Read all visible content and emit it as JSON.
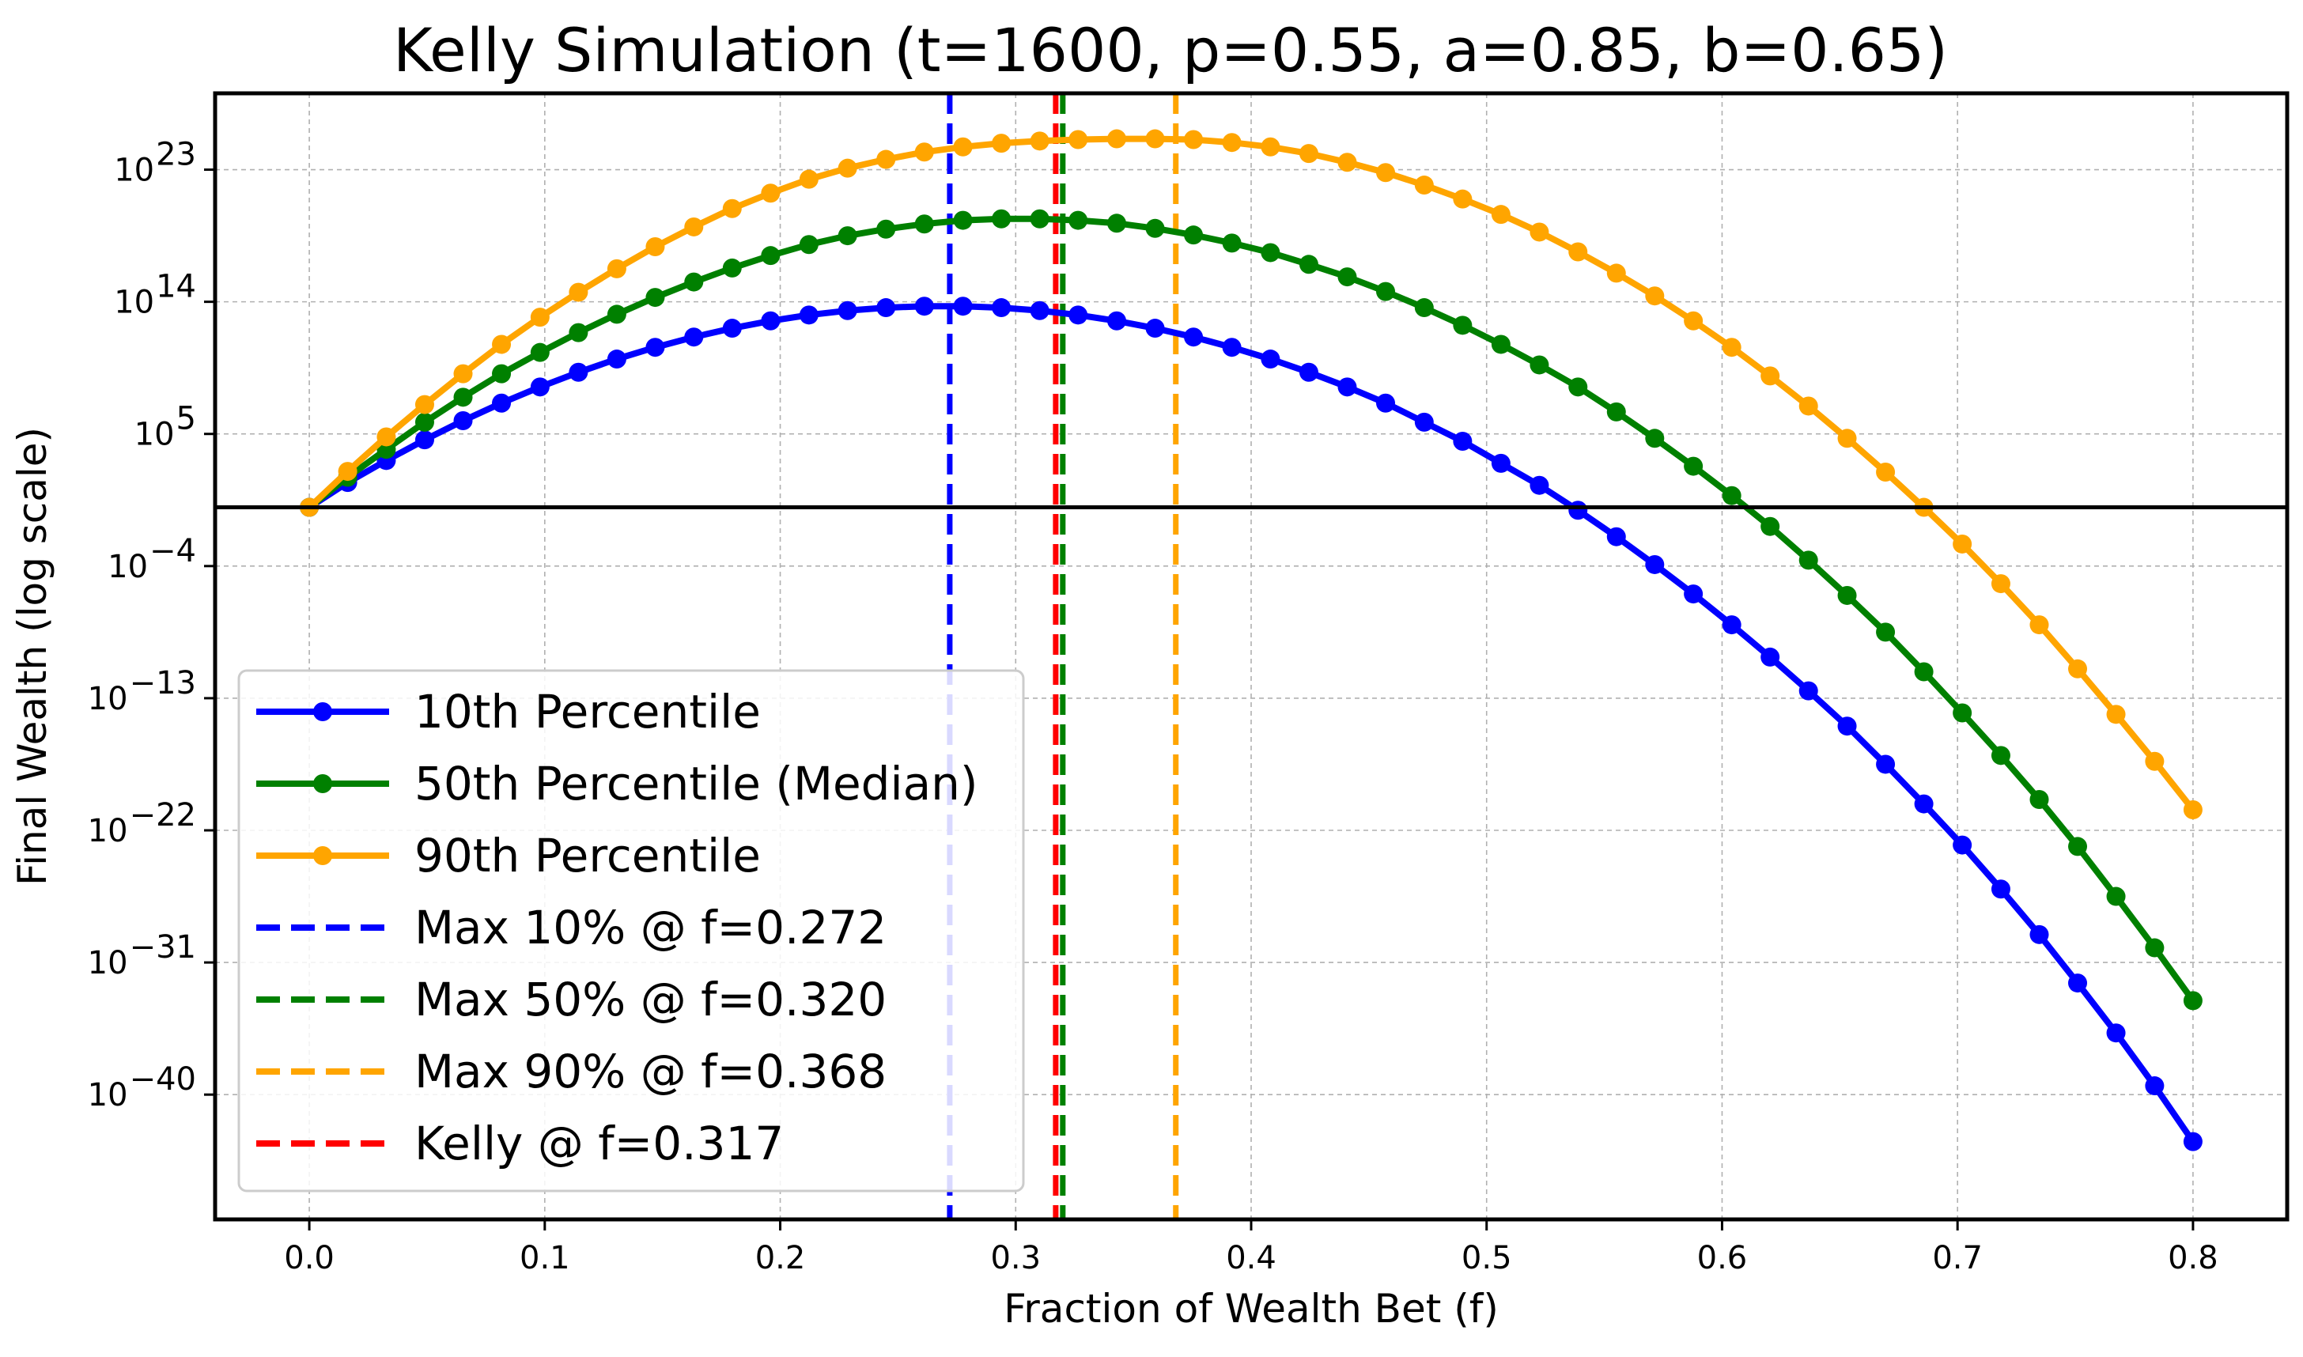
{
  "chart_data": {
    "type": "line",
    "title": "Kelly Simulation (t=1600, p=0.55, a=0.85, b=0.65)",
    "xlabel": "Fraction of Wealth Bet (f)",
    "ylabel": "Final Wealth (log scale)",
    "y_scale": "log",
    "xlim": [
      -0.04,
      0.84
    ],
    "ylim_log10": [
      -48.5,
      28.2
    ],
    "x_ticks": [
      {
        "value": 0.0,
        "label": "0.0"
      },
      {
        "value": 0.1,
        "label": "0.1"
      },
      {
        "value": 0.2,
        "label": "0.2"
      },
      {
        "value": 0.3,
        "label": "0.3"
      },
      {
        "value": 0.4,
        "label": "0.4"
      },
      {
        "value": 0.5,
        "label": "0.5"
      },
      {
        "value": 0.6,
        "label": "0.6"
      },
      {
        "value": 0.7,
        "label": "0.7"
      },
      {
        "value": 0.8,
        "label": "0.8"
      }
    ],
    "y_ticks": [
      {
        "exp": 23,
        "base": "10",
        "sup": "23"
      },
      {
        "exp": 14,
        "base": "10",
        "sup": "14"
      },
      {
        "exp": 5,
        "base": "10",
        "sup": "5"
      },
      {
        "exp": -4,
        "base": "10",
        "sup": "−4"
      },
      {
        "exp": -13,
        "base": "10",
        "sup": "−13"
      },
      {
        "exp": -22,
        "base": "10",
        "sup": "−22"
      },
      {
        "exp": -31,
        "base": "10",
        "sup": "−31"
      },
      {
        "exp": -40,
        "base": "10",
        "sup": "−40"
      }
    ],
    "grid": true,
    "legend_position": "lower-left",
    "reference_line_y": 1,
    "x": [
      0.0,
      0.0163,
      0.0327,
      0.049,
      0.0653,
      0.0816,
      0.098,
      0.1143,
      0.1306,
      0.1469,
      0.1633,
      0.1796,
      0.1959,
      0.2122,
      0.2286,
      0.2449,
      0.2612,
      0.2776,
      0.2939,
      0.3102,
      0.3265,
      0.3429,
      0.3592,
      0.3755,
      0.3918,
      0.4082,
      0.4245,
      0.4408,
      0.4571,
      0.4735,
      0.4898,
      0.5061,
      0.5224,
      0.5388,
      0.5551,
      0.5714,
      0.5878,
      0.6041,
      0.6204,
      0.6367,
      0.6531,
      0.6694,
      0.6857,
      0.702,
      0.7184,
      0.7347,
      0.751,
      0.7673,
      0.7837,
      0.8
    ],
    "series": [
      {
        "name": "10th Percentile",
        "color": "#0000ff",
        "log10_values": [
          0.0,
          1.69,
          3.19,
          4.6,
          5.9,
          7.1,
          8.2,
          9.2,
          10.1,
          10.9,
          11.6,
          12.2,
          12.7,
          13.1,
          13.4,
          13.6,
          13.7,
          13.7,
          13.6,
          13.4,
          13.1,
          12.7,
          12.2,
          11.6,
          10.9,
          10.1,
          9.2,
          8.2,
          7.1,
          5.8,
          4.5,
          3.0,
          1.5,
          -0.2,
          -2.0,
          -3.9,
          -5.9,
          -8.0,
          -10.2,
          -12.5,
          -14.9,
          -17.5,
          -20.2,
          -23.0,
          -26.0,
          -29.1,
          -32.4,
          -35.8,
          -39.4,
          -43.2
        ]
      },
      {
        "name": "50th Percentile (Median)",
        "color": "#008000",
        "log10_values": [
          0.0,
          2.05,
          3.95,
          5.8,
          7.5,
          9.1,
          10.55,
          11.9,
          13.15,
          14.3,
          15.35,
          16.3,
          17.15,
          17.9,
          18.5,
          18.95,
          19.3,
          19.55,
          19.65,
          19.65,
          19.55,
          19.35,
          19.0,
          18.55,
          18.0,
          17.35,
          16.55,
          15.7,
          14.7,
          13.6,
          12.4,
          11.1,
          9.7,
          8.2,
          6.5,
          4.7,
          2.8,
          0.8,
          -1.3,
          -3.6,
          -6.0,
          -8.5,
          -11.2,
          -14.0,
          -16.9,
          -19.9,
          -23.1,
          -26.5,
          -30.0,
          -33.6
        ]
      },
      {
        "name": "90th Percentile",
        "color": "#ffa500",
        "log10_values": [
          0.0,
          2.45,
          4.8,
          7.0,
          9.1,
          11.1,
          12.95,
          14.65,
          16.25,
          17.75,
          19.1,
          20.35,
          21.4,
          22.35,
          23.1,
          23.7,
          24.2,
          24.55,
          24.8,
          24.95,
          25.05,
          25.1,
          25.1,
          25.05,
          24.85,
          24.55,
          24.1,
          23.5,
          22.8,
          21.95,
          21.0,
          19.95,
          18.75,
          17.4,
          15.95,
          14.4,
          12.7,
          10.9,
          8.95,
          6.9,
          4.7,
          2.4,
          0.0,
          -2.5,
          -5.2,
          -8.0,
          -11.0,
          -14.1,
          -17.3,
          -20.6
        ]
      }
    ],
    "vlines": [
      {
        "name": "Max 10% @ f=0.272",
        "x": 0.272,
        "color": "#0000ff"
      },
      {
        "name": "Max 50% @ f=0.320",
        "x": 0.32,
        "color": "#008000"
      },
      {
        "name": "Max 90% @ f=0.368",
        "x": 0.368,
        "color": "#ffa500"
      },
      {
        "name": "Kelly @ f=0.317",
        "x": 0.317,
        "color": "#ff0000"
      }
    ]
  }
}
